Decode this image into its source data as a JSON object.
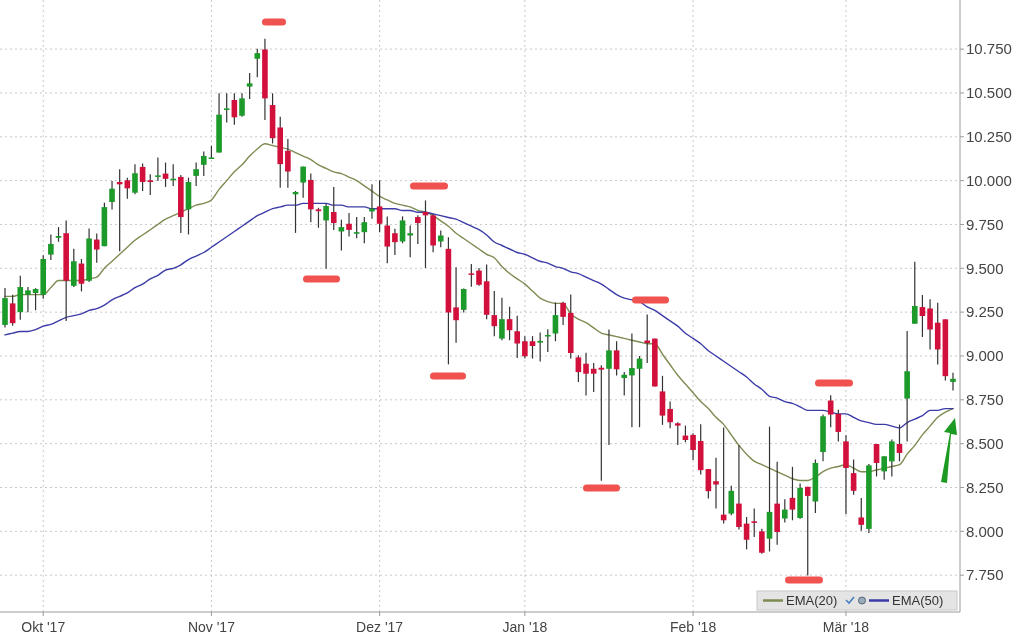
{
  "chart_data": {
    "type": "candlestick",
    "categories": [
      null,
      null,
      null,
      null,
      null,
      "Okt '17",
      null,
      null,
      null,
      null,
      null,
      null,
      null,
      null,
      null,
      null,
      null,
      null,
      null,
      null,
      null,
      null,
      null,
      null,
      null,
      null,
      null,
      "Nov '17",
      null,
      null,
      null,
      null,
      null,
      null,
      null,
      null,
      null,
      null,
      null,
      null,
      null,
      null,
      null,
      null,
      null,
      null,
      null,
      null,
      null,
      "Dez '17",
      null,
      null,
      null,
      null,
      null,
      null,
      null,
      null,
      null,
      null,
      null,
      null,
      null,
      null,
      null,
      null,
      null,
      null,
      "Jan '18",
      null,
      null,
      null,
      null,
      null,
      null,
      null,
      null,
      null,
      null,
      null,
      null,
      null,
      null,
      null,
      null,
      null,
      null,
      null,
      null,
      null,
      "Feb '18",
      null,
      null,
      null,
      null,
      null,
      null,
      null,
      null,
      null,
      null,
      null,
      null,
      null,
      null,
      null,
      null,
      null,
      null,
      null,
      "Mär '18",
      null,
      null,
      null,
      null,
      null,
      null,
      null,
      null,
      null,
      null,
      null,
      null,
      null,
      null
    ],
    "ohlc": [
      [
        9.177,
        9.387,
        9.162,
        9.33
      ],
      [
        9.3,
        9.349,
        9.172,
        9.187
      ],
      [
        9.25,
        9.458,
        9.206,
        9.393
      ],
      [
        9.349,
        9.393,
        9.25,
        9.374
      ],
      [
        9.359,
        9.387,
        9.261,
        9.382
      ],
      [
        9.349,
        9.574,
        9.326,
        9.553
      ],
      [
        9.578,
        9.693,
        9.548,
        9.639
      ],
      [
        9.674,
        9.735,
        9.651,
        9.684
      ],
      [
        9.7,
        9.773,
        9.2,
        9.429
      ],
      [
        9.4,
        9.611,
        9.393,
        9.54
      ],
      [
        9.527,
        9.553,
        9.368,
        9.412
      ],
      [
        9.429,
        9.727,
        9.422,
        9.67
      ],
      [
        9.664,
        9.698,
        9.531,
        9.607
      ],
      [
        9.626,
        9.874,
        9.626,
        9.849
      ],
      [
        9.878,
        9.998,
        9.836,
        9.954
      ],
      [
        9.992,
        10.065,
        9.597,
        9.979
      ],
      [
        10.002,
        10.017,
        9.897,
        9.956
      ],
      [
        9.931,
        10.094,
        9.922,
        10.042
      ],
      [
        10.078,
        10.097,
        9.941,
        9.992
      ],
      [
        10.002,
        10.036,
        9.918,
        9.992
      ],
      [
        10.021,
        10.132,
        9.998,
        10.03
      ],
      [
        10.04,
        10.103,
        9.964,
        10.01
      ],
      [
        10.002,
        10.094,
        9.969,
        10.011
      ],
      [
        10.021,
        10.032,
        9.702,
        9.792
      ],
      [
        9.836,
        10.017,
        9.693,
        9.992
      ],
      [
        10.027,
        10.103,
        9.969,
        10.065
      ],
      [
        10.09,
        10.166,
        10.027,
        10.141
      ],
      [
        10.124,
        10.198,
        10.124,
        10.132
      ],
      [
        10.16,
        10.498,
        10.16,
        10.376
      ],
      [
        10.403,
        10.498,
        10.332,
        10.412
      ],
      [
        10.46,
        10.498,
        10.319,
        10.361
      ],
      [
        10.37,
        10.498,
        10.364,
        10.469
      ],
      [
        10.536,
        10.613,
        10.466,
        10.555
      ],
      [
        10.695,
        10.752,
        10.59,
        10.727
      ],
      [
        10.748,
        10.809,
        10.345,
        10.469
      ],
      [
        10.431,
        10.498,
        10.212,
        10.242
      ],
      [
        10.303,
        10.364,
        9.96,
        10.094
      ],
      [
        10.17,
        10.237,
        9.96,
        10.052
      ],
      [
        9.922,
        9.941,
        9.702,
        9.935
      ],
      [
        9.989,
        10.08,
        9.903,
        10.08
      ],
      [
        10.004,
        10.04,
        9.763,
        9.836
      ],
      [
        9.836,
        9.845,
        9.731,
        9.826
      ],
      [
        9.773,
        9.868,
        9.498,
        9.855
      ],
      [
        9.821,
        9.964,
        9.719,
        9.758
      ],
      [
        9.71,
        9.777,
        9.601,
        9.735
      ],
      [
        9.754,
        9.815,
        9.681,
        9.719
      ],
      [
        9.697,
        9.792,
        9.672,
        9.706
      ],
      [
        9.706,
        9.792,
        9.643,
        9.763
      ],
      [
        9.824,
        9.979,
        9.782,
        9.84
      ],
      [
        9.853,
        10.002,
        9.706,
        9.754
      ],
      [
        9.744,
        9.796,
        9.529,
        9.624
      ],
      [
        9.7,
        9.725,
        9.576,
        9.649
      ],
      [
        9.653,
        9.796,
        9.643,
        9.773
      ],
      [
        9.687,
        9.744,
        9.563,
        9.7
      ],
      [
        9.792,
        9.802,
        9.639,
        9.758
      ],
      [
        9.821,
        9.887,
        9.502,
        9.802
      ],
      [
        9.802,
        9.811,
        9.592,
        9.63
      ],
      [
        9.653,
        9.716,
        9.62,
        9.687
      ],
      [
        9.611,
        9.677,
        8.952,
        9.248
      ],
      [
        9.277,
        9.506,
        9.076,
        9.204
      ],
      [
        9.263,
        9.385,
        9.248,
        9.382
      ],
      [
        9.471,
        9.525,
        9.395,
        9.464
      ],
      [
        9.487,
        9.502,
        9.401,
        9.406
      ],
      [
        9.426,
        9.521,
        9.21,
        9.235
      ],
      [
        9.233,
        9.37,
        9.113,
        9.17
      ],
      [
        9.099,
        9.332,
        9.09,
        9.21
      ],
      [
        9.21,
        9.281,
        9.09,
        9.147
      ],
      [
        9.141,
        9.229,
        8.989,
        9.071
      ],
      [
        9.084,
        9.113,
        8.985,
        8.998
      ],
      [
        9.084,
        9.113,
        8.985,
        9.057
      ],
      [
        9.076,
        9.134,
        8.969,
        9.086
      ],
      [
        9.111,
        9.153,
        9.023,
        9.12
      ],
      [
        9.128,
        9.305,
        9.084,
        9.233
      ],
      [
        9.303,
        9.309,
        9.176,
        9.223
      ],
      [
        9.246,
        9.351,
        8.985,
        9.017
      ],
      [
        8.992,
        9.004,
        8.851,
        8.908
      ],
      [
        8.956,
        9.019,
        8.775,
        8.899
      ],
      [
        8.927,
        8.96,
        8.794,
        8.899
      ],
      [
        8.933,
        8.947,
        8.288,
        8.922
      ],
      [
        8.927,
        9.151,
        8.492,
        9.032
      ],
      [
        9.032,
        9.084,
        8.889,
        8.924
      ],
      [
        8.874,
        8.908,
        8.775,
        8.893
      ],
      [
        8.889,
        9.128,
        8.594,
        8.931
      ],
      [
        8.927,
        9.0,
        8.594,
        8.985
      ],
      [
        9.088,
        9.237,
        8.96,
        9.074
      ],
      [
        9.099,
        9.099,
        8.826,
        8.826
      ],
      [
        8.798,
        8.887,
        8.607,
        8.66
      ],
      [
        8.698,
        8.74,
        8.588,
        8.622
      ],
      [
        8.616,
        8.622,
        8.492,
        8.603
      ],
      [
        8.546,
        8.603,
        8.508,
        8.521
      ],
      [
        8.55,
        8.559,
        8.407,
        8.464
      ],
      [
        8.515,
        8.611,
        8.324,
        8.349
      ],
      [
        8.355,
        8.355,
        8.187,
        8.229
      ],
      [
        8.286,
        8.42,
        8.13,
        8.267
      ],
      [
        8.095,
        8.592,
        8.044,
        8.063
      ],
      [
        8.101,
        8.26,
        8.092,
        8.231
      ],
      [
        8.158,
        8.492,
        8.011,
        8.025
      ],
      [
        8.044,
        8.082,
        7.897,
        7.952
      ],
      [
        8.057,
        8.13,
        7.968,
        8.048
      ],
      [
        8.0,
        8.015,
        7.872,
        7.878
      ],
      [
        7.958,
        8.597,
        7.885,
        8.111
      ],
      [
        8.158,
        8.397,
        7.924,
        7.996
      ],
      [
        8.073,
        8.183,
        8.05,
        8.124
      ],
      [
        8.191,
        8.368,
        8.063,
        8.124
      ],
      [
        8.076,
        8.273,
        8.072,
        8.248
      ],
      [
        8.254,
        8.254,
        7.748,
        8.202
      ],
      [
        8.17,
        8.409,
        8.104,
        8.39
      ],
      [
        8.452,
        8.666,
        8.399,
        8.656
      ],
      [
        8.746,
        8.776,
        8.593,
        8.666
      ],
      [
        8.67,
        8.694,
        8.513,
        8.567
      ],
      [
        8.513,
        8.548,
        8.098,
        8.361
      ],
      [
        8.332,
        8.409,
        8.209,
        8.231
      ],
      [
        8.079,
        8.19,
        8.003,
        8.037
      ],
      [
        8.014,
        8.384,
        7.99,
        8.376
      ],
      [
        8.498,
        8.498,
        8.313,
        8.39
      ],
      [
        8.342,
        8.428,
        8.294,
        8.428
      ],
      [
        8.399,
        8.523,
        8.313,
        8.513
      ],
      [
        8.498,
        8.609,
        8.399,
        8.447
      ],
      [
        8.757,
        9.142,
        8.513,
        8.913
      ],
      [
        9.184,
        9.538,
        9.184,
        9.285
      ],
      [
        9.279,
        9.348,
        9.108,
        9.228
      ],
      [
        9.271,
        9.323,
        9.037,
        9.151
      ],
      [
        9.19,
        9.304,
        8.951,
        9.037
      ],
      [
        9.209,
        9.209,
        8.86,
        8.885
      ],
      [
        8.852,
        8.904,
        8.803,
        8.87
      ]
    ],
    "series": [
      {
        "name": "EMA(20)",
        "type": "line",
        "color": "#7d8c52",
        "values": [
          9.34,
          9.34,
          9.35,
          9.35,
          9.35,
          9.35,
          9.39,
          9.43,
          9.43,
          9.43,
          9.43,
          9.44,
          9.45,
          9.5,
          9.54,
          9.58,
          9.62,
          9.66,
          9.69,
          9.72,
          9.75,
          9.78,
          9.8,
          9.82,
          9.84,
          9.86,
          9.87,
          9.89,
          9.95,
          10.0,
          10.05,
          10.09,
          10.14,
          10.18,
          10.21,
          10.2,
          10.19,
          10.18,
          10.16,
          10.14,
          10.12,
          10.09,
          10.07,
          10.05,
          10.04,
          10.02,
          10.0,
          9.97,
          9.94,
          9.91,
          9.89,
          9.87,
          9.86,
          9.85,
          9.83,
          9.82,
          9.8,
          9.77,
          9.74,
          9.7,
          9.67,
          9.64,
          9.61,
          9.58,
          9.56,
          9.51,
          9.47,
          9.44,
          9.41,
          9.37,
          9.33,
          9.31,
          9.3,
          9.3,
          9.24,
          9.21,
          9.19,
          9.16,
          9.13,
          9.12,
          9.11,
          9.1,
          9.09,
          9.08,
          9.07,
          9.07,
          9.01,
          8.95,
          8.89,
          8.84,
          8.79,
          8.74,
          8.7,
          8.65,
          8.61,
          8.55,
          8.49,
          8.44,
          8.4,
          8.38,
          8.36,
          8.34,
          8.32,
          8.3,
          8.29,
          8.29,
          8.31,
          8.34,
          8.36,
          8.37,
          8.38,
          8.36,
          8.34,
          8.34,
          8.35,
          8.36,
          8.37,
          8.38,
          8.44,
          8.49,
          8.55,
          8.6,
          8.65,
          8.68,
          8.7
        ]
      },
      {
        "name": "EMA(50)",
        "type": "line",
        "color": "#3c3ca8",
        "values": [
          9.12,
          9.13,
          9.14,
          9.14,
          9.15,
          9.17,
          9.18,
          9.2,
          9.22,
          9.23,
          9.24,
          9.26,
          9.27,
          9.29,
          9.32,
          9.34,
          9.36,
          9.39,
          9.41,
          9.44,
          9.46,
          9.49,
          9.5,
          9.52,
          9.55,
          9.57,
          9.59,
          9.62,
          9.65,
          9.68,
          9.71,
          9.74,
          9.77,
          9.8,
          9.82,
          9.84,
          9.85,
          9.86,
          9.86,
          9.87,
          9.87,
          9.87,
          9.87,
          9.86,
          9.86,
          9.85,
          9.85,
          9.85,
          9.84,
          9.84,
          9.84,
          9.84,
          9.83,
          9.83,
          9.82,
          9.82,
          9.81,
          9.8,
          9.79,
          9.78,
          9.76,
          9.74,
          9.72,
          9.69,
          9.65,
          9.63,
          9.61,
          9.59,
          9.58,
          9.56,
          9.54,
          9.53,
          9.51,
          9.5,
          9.48,
          9.47,
          9.45,
          9.43,
          9.41,
          9.38,
          9.35,
          9.33,
          9.32,
          9.31,
          9.28,
          9.26,
          9.23,
          9.2,
          9.17,
          9.13,
          9.1,
          9.07,
          9.03,
          9.0,
          8.97,
          8.94,
          8.91,
          8.88,
          8.84,
          8.81,
          8.77,
          8.76,
          8.74,
          8.73,
          8.71,
          8.69,
          8.69,
          8.69,
          8.68,
          8.67,
          8.67,
          8.65,
          8.63,
          8.62,
          8.61,
          8.61,
          8.6,
          8.59,
          8.62,
          8.64,
          8.66,
          8.69,
          8.69,
          8.7,
          8.7
        ]
      }
    ],
    "ylim": [
      7.54,
      11.03
    ],
    "yticks": [
      {
        "value": 7.75,
        "label": "7.750"
      },
      {
        "value": 8,
        "label": "8.000"
      },
      {
        "value": 8.25,
        "label": "8.250"
      },
      {
        "value": 8.5,
        "label": "8.500"
      },
      {
        "value": 8.75,
        "label": "8.750"
      },
      {
        "value": 9,
        "label": "9.000"
      },
      {
        "value": 9.25,
        "label": "9.250"
      },
      {
        "value": 9.5,
        "label": "9.500"
      },
      {
        "value": 9.75,
        "label": "9.750"
      },
      {
        "value": 10,
        "label": "10.000"
      },
      {
        "value": 10.25,
        "label": "10.250"
      },
      {
        "value": 10.5,
        "label": "10.500"
      },
      {
        "value": 10.75,
        "label": "10.750"
      }
    ],
    "grid": true,
    "legend": "bottom right"
  }
}
